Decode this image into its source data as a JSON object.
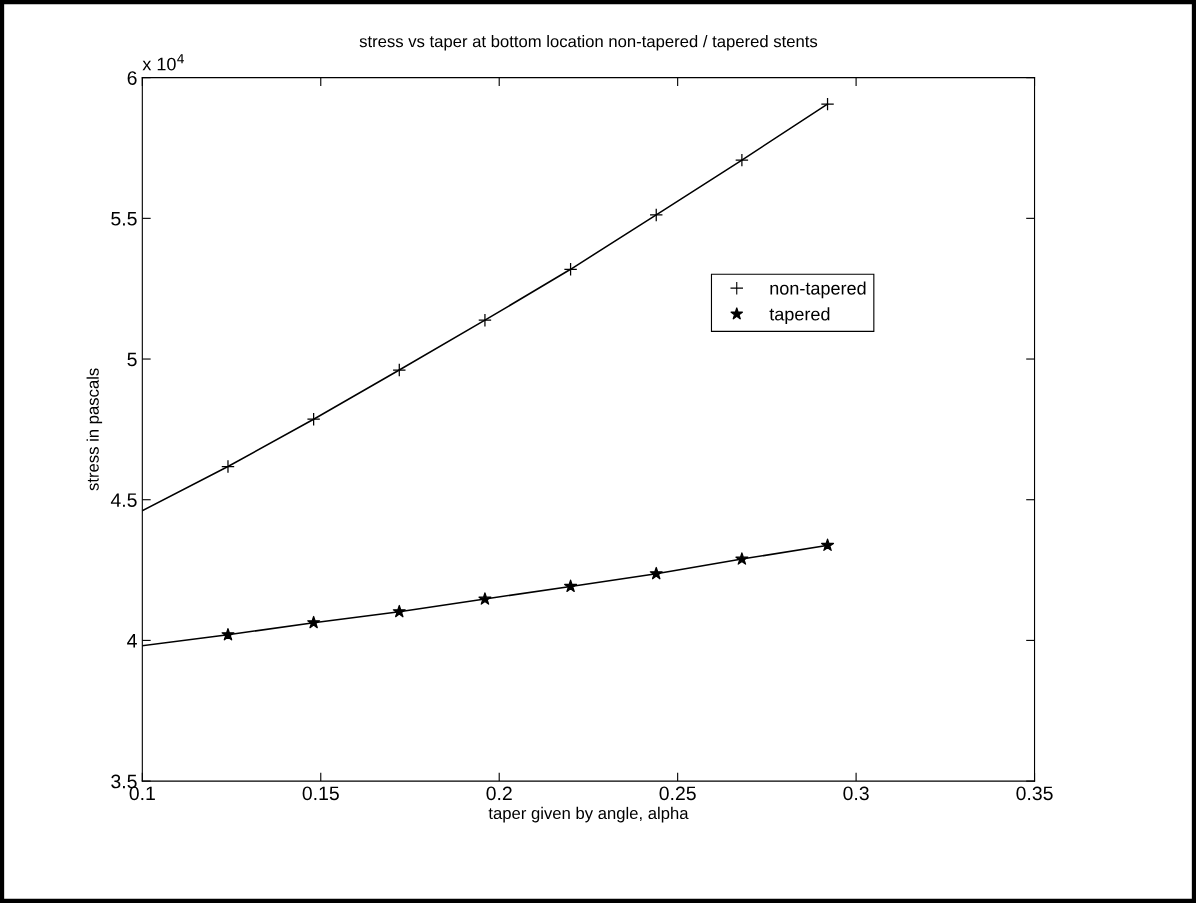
{
  "chart_data": {
    "type": "line",
    "title": "stress vs taper at bottom location non-tapered / tapered stents",
    "xlabel": "taper given by angle, alpha",
    "ylabel": "stress in pascals",
    "annotations": [
      "x 10$^{4}$"
    ],
    "series": [
      {
        "color": "#000000",
        "marker": "none",
        "line_style": "solid",
        "x": [
          0.1,
          0.124,
          0.148,
          0.172,
          0.196,
          0.22,
          0.244,
          0.268,
          0.292
        ],
        "values": [
          4.461,
          4.618,
          4.786,
          4.961,
          5.138,
          5.319,
          5.512,
          5.707,
          5.906
        ]
      },
      {
        "type": "scatter",
        "name": "non-tapered",
        "color": "#000000",
        "marker": "cross",
        "x": [
          0.124,
          0.148,
          0.172,
          0.196,
          0.22,
          0.244,
          0.268,
          0.292
        ],
        "values": [
          4.618,
          4.786,
          4.961,
          5.138,
          5.319,
          5.512,
          5.707,
          5.906
        ]
      },
      {
        "color": "#000000",
        "marker": "none",
        "line_style": "solid",
        "x": [
          0.1,
          0.124,
          0.148,
          0.172,
          0.196,
          0.22,
          0.244,
          0.268,
          0.292
        ],
        "values": [
          3.981,
          4.02,
          4.063,
          4.102,
          4.147,
          4.192,
          4.237,
          4.289,
          4.338
        ]
      },
      {
        "type": "scatter",
        "name": "tapered",
        "color": "#000000",
        "marker": "star",
        "x": [
          0.124,
          0.148,
          0.172,
          0.196,
          0.22,
          0.244,
          0.268,
          0.292
        ],
        "values": [
          4.02,
          4.063,
          4.102,
          4.147,
          4.192,
          4.237,
          4.289,
          4.338
        ]
      }
    ],
    "xlim": [
      0.1,
      0.35
    ],
    "xticks": [
      0.1,
      0.15,
      0.2,
      0.25,
      0.3,
      0.35
    ],
    "ylim": [
      3.5,
      6
    ],
    "yticks": [
      3.5,
      4,
      4.5,
      5,
      5.5,
      6
    ],
    "grid": false,
    "legend": "right"
  }
}
